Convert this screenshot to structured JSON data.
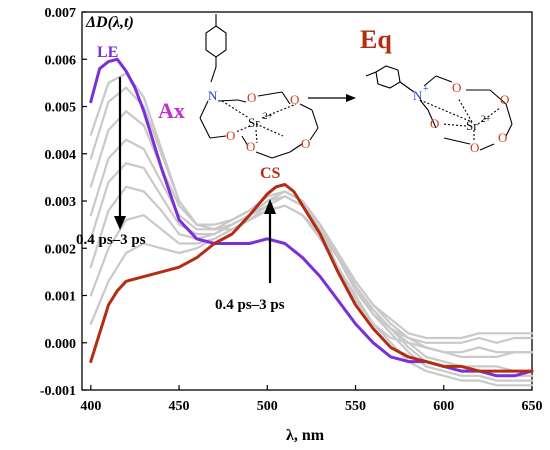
{
  "chart_data": {
    "type": "line",
    "ylabel": "ΔD(λ,t)",
    "xlabel": "λ, nm",
    "xlim": [
      395,
      650
    ],
    "ylim": [
      -0.001,
      0.007
    ],
    "x_ticks": [
      "400",
      "450",
      "500",
      "550",
      "600",
      "650"
    ],
    "y_ticks": [
      "-0.001",
      "0.000",
      "0.001",
      "0.002",
      "0.003",
      "0.004",
      "0.005",
      "0.006",
      "0.007"
    ],
    "legend": null,
    "labels": {
      "le": "LE",
      "cs": "CS",
      "ax": "Ax",
      "eq": "Eq",
      "arrow_down": "0.4 ps–3 ps",
      "arrow_up": "0.4 ps–3 ps"
    },
    "molecule_atoms": {
      "n_ax": "N",
      "sr_ax": "Sr",
      "sr_ax_charge": "2+",
      "n_eq": "N",
      "n_eq_charge": "+",
      "sr_eq": "Sr",
      "sr_eq_charge": "2+",
      "oxygen": "O"
    },
    "colors": {
      "le_series": "#7b2fd6",
      "cs_series": "#b42d12",
      "intermediate": "#c9c9c9",
      "ax_label": "#c02fd0",
      "eq_label": "#b42d12",
      "nitrogen": "#1f3fd0",
      "oxygen": "#d23a1a"
    },
    "series": [
      {
        "x": [
          400,
          405,
          410,
          415,
          420,
          425,
          430,
          440,
          450,
          460,
          470,
          480,
          490,
          500,
          510,
          520,
          530,
          540,
          550,
          560,
          570,
          580,
          590,
          600,
          610,
          620,
          630,
          640,
          650
        ],
        "y": [
          0.0051,
          0.0058,
          0.00595,
          0.006,
          0.00575,
          0.0054,
          0.0049,
          0.0037,
          0.0026,
          0.0022,
          0.0021,
          0.0021,
          0.0021,
          0.0022,
          0.0021,
          0.0018,
          0.0014,
          0.0009,
          0.0004,
          0.0,
          -0.0003,
          -0.0004,
          -0.0004,
          -0.0005,
          -0.0006,
          -0.0006,
          -0.0007,
          -0.0007,
          -0.0006
        ],
        "role": "le"
      },
      {
        "x": [
          400,
          410,
          420,
          430,
          440,
          450,
          460,
          470,
          480,
          490,
          500,
          510,
          520,
          530,
          540,
          550,
          560,
          570,
          580,
          590,
          600,
          610,
          620,
          630,
          640,
          650
        ],
        "y": [
          0.0044,
          0.0055,
          0.0057,
          0.0052,
          0.0041,
          0.003,
          0.0025,
          0.0024,
          0.0024,
          0.0026,
          0.0029,
          0.0031,
          0.0029,
          0.0024,
          0.0016,
          0.0009,
          0.0004,
          0.0001,
          0.0,
          -0.0001,
          -0.0002,
          -0.0003,
          -0.0003,
          -0.0003,
          -0.0002,
          -0.0002
        ],
        "role": "mid"
      },
      {
        "x": [
          400,
          410,
          420,
          430,
          440,
          450,
          460,
          470,
          480,
          490,
          500,
          510,
          520,
          530,
          540,
          550,
          560,
          570,
          580,
          590,
          600,
          610,
          620,
          630,
          640,
          650
        ],
        "y": [
          0.0039,
          0.0051,
          0.0054,
          0.005,
          0.004,
          0.003,
          0.0025,
          0.0024,
          0.0025,
          0.0027,
          0.003,
          0.0032,
          0.003,
          0.0025,
          0.0018,
          0.0011,
          0.0006,
          0.0003,
          0.0001,
          0.0,
          0.0,
          0.0,
          0.0001,
          0.0,
          0.0001,
          0.0001
        ],
        "role": "mid"
      },
      {
        "x": [
          400,
          410,
          420,
          430,
          440,
          450,
          460,
          470,
          480,
          490,
          500,
          510,
          520,
          530,
          540,
          550,
          560,
          570,
          580,
          590,
          600,
          610,
          620,
          630,
          640,
          650
        ],
        "y": [
          0.0033,
          0.0045,
          0.0049,
          0.0046,
          0.0037,
          0.0029,
          0.0025,
          0.0025,
          0.0026,
          0.0028,
          0.0031,
          0.0032,
          0.003,
          0.0025,
          0.0019,
          0.0013,
          0.0008,
          0.0005,
          0.0002,
          0.0001,
          0.0001,
          0.0001,
          0.0002,
          0.0002,
          0.0002,
          0.0002
        ],
        "role": "mid"
      },
      {
        "x": [
          400,
          410,
          420,
          430,
          440,
          450,
          460,
          470,
          480,
          490,
          500,
          510,
          520,
          530,
          540,
          550,
          560,
          570,
          580,
          590,
          600,
          610,
          620,
          630,
          640,
          650
        ],
        "y": [
          0.0027,
          0.0039,
          0.0043,
          0.0041,
          0.0034,
          0.0027,
          0.0024,
          0.0024,
          0.0026,
          0.0028,
          0.0031,
          0.0032,
          0.003,
          0.0025,
          0.0019,
          0.0013,
          0.0008,
          0.0004,
          0.0001,
          -0.0001,
          -0.0002,
          -0.0002,
          -0.0001,
          -0.0002,
          -0.0002,
          -0.0002
        ],
        "role": "mid"
      },
      {
        "x": [
          400,
          410,
          420,
          430,
          440,
          450,
          460,
          470,
          480,
          490,
          500,
          510,
          520,
          530,
          540,
          550,
          560,
          570,
          580,
          590,
          600,
          610,
          620,
          630,
          640,
          650
        ],
        "y": [
          0.0022,
          0.0034,
          0.0038,
          0.0037,
          0.0031,
          0.0025,
          0.0023,
          0.0023,
          0.0025,
          0.0027,
          0.003,
          0.0031,
          0.0029,
          0.0025,
          0.0019,
          0.0012,
          0.0007,
          0.0003,
          0.0,
          -0.0003,
          -0.0004,
          -0.0005,
          -0.0005,
          -0.0005,
          -0.0006,
          -0.0006
        ],
        "role": "mid"
      },
      {
        "x": [
          400,
          410,
          420,
          430,
          440,
          450,
          460,
          470,
          480,
          490,
          500,
          510,
          520,
          530,
          540,
          550,
          560,
          570,
          580,
          590,
          600,
          610,
          620,
          630,
          640,
          650
        ],
        "y": [
          0.0016,
          0.0028,
          0.0033,
          0.0032,
          0.0028,
          0.0023,
          0.0022,
          0.0023,
          0.0025,
          0.0027,
          0.0029,
          0.0031,
          0.0029,
          0.0024,
          0.0018,
          0.0012,
          0.0007,
          0.0003,
          -0.0001,
          -0.0004,
          -0.0005,
          -0.0006,
          -0.0006,
          -0.0007,
          -0.0007,
          -0.0007
        ],
        "role": "mid"
      },
      {
        "x": [
          400,
          410,
          420,
          430,
          440,
          450,
          460,
          470,
          480,
          490,
          500,
          510,
          520,
          530,
          540,
          550,
          560,
          570,
          580,
          590,
          600,
          610,
          620,
          630,
          640,
          650
        ],
        "y": [
          0.001,
          0.002,
          0.0026,
          0.0027,
          0.0024,
          0.0021,
          0.0021,
          0.0022,
          0.0024,
          0.0026,
          0.0028,
          0.0029,
          0.0027,
          0.0023,
          0.0018,
          0.0012,
          0.0006,
          0.0002,
          -0.0002,
          -0.0005,
          -0.0006,
          -0.0007,
          -0.0007,
          -0.0008,
          -0.0008,
          -0.0008
        ],
        "role": "mid"
      },
      {
        "x": [
          400,
          410,
          420,
          430,
          440,
          450,
          460,
          470,
          480,
          490,
          500,
          510,
          520,
          530,
          540,
          550,
          560,
          570,
          580,
          590,
          600,
          610,
          620,
          630,
          640,
          650
        ],
        "y": [
          0.0004,
          0.0013,
          0.0019,
          0.0021,
          0.002,
          0.0019,
          0.002,
          0.0022,
          0.0024,
          0.0026,
          0.0028,
          0.0029,
          0.0027,
          0.0022,
          0.0016,
          0.001,
          0.0004,
          0.0,
          -0.0004,
          -0.0006,
          -0.0007,
          -0.0008,
          -0.0008,
          -0.0009,
          -0.0009,
          -0.0009
        ],
        "role": "mid"
      },
      {
        "x": [
          400,
          405,
          410,
          415,
          420,
          430,
          440,
          450,
          460,
          470,
          480,
          490,
          500,
          505,
          510,
          515,
          520,
          530,
          540,
          550,
          560,
          570,
          580,
          590,
          600,
          610,
          620,
          630,
          640,
          650
        ],
        "y": [
          -0.0004,
          0.0002,
          0.0008,
          0.0011,
          0.0013,
          0.0014,
          0.0015,
          0.0016,
          0.0018,
          0.0021,
          0.0023,
          0.0027,
          0.00315,
          0.0033,
          0.00335,
          0.0032,
          0.0029,
          0.0023,
          0.0015,
          0.0008,
          0.0003,
          -0.0001,
          -0.0003,
          -0.0004,
          -0.0005,
          -0.0005,
          -0.0006,
          -0.0006,
          -0.0006,
          -0.0006
        ],
        "role": "cs"
      }
    ]
  }
}
